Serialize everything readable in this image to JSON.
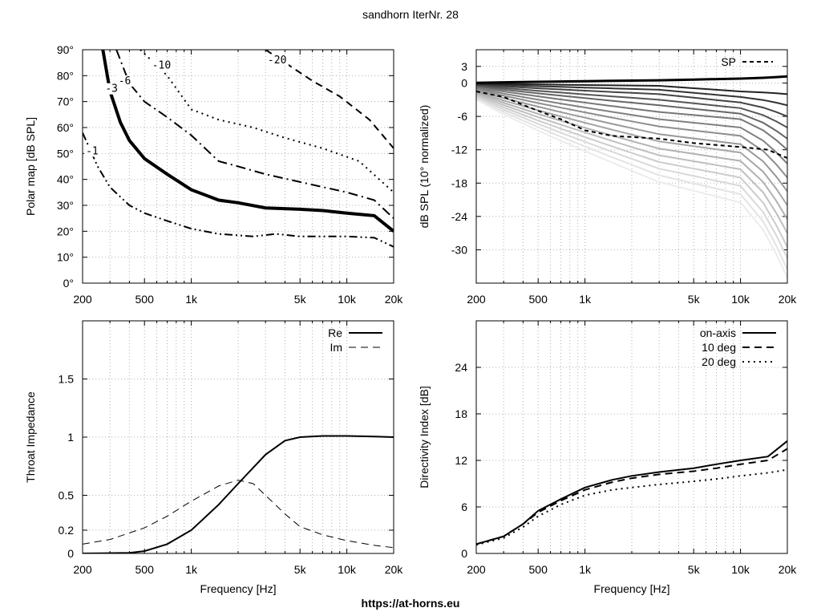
{
  "title": "sandhorn IterNr. 28",
  "footer": "https://at-horns.eu",
  "frequency_ticks": [
    "200",
    "500",
    "1k",
    "5k",
    "10k",
    "20k"
  ],
  "chart_data": [
    {
      "id": "polar",
      "type": "line",
      "ylabel": "Polar map [dB SPL]",
      "xlabel": "",
      "xscale": "log",
      "xlim": [
        200,
        20000
      ],
      "ylim": [
        0,
        90
      ],
      "yticks": [
        0,
        10,
        20,
        30,
        40,
        50,
        60,
        70,
        80,
        90
      ],
      "ytick_labels": [
        "0°",
        "10°",
        "20°",
        "30°",
        "40°",
        "50°",
        "60°",
        "70°",
        "80°",
        "90°"
      ],
      "series": [
        {
          "name": "-1",
          "style": "dash-dot-dot",
          "label_at": [
            210,
            50
          ],
          "points": [
            [
              200,
              58
            ],
            [
              250,
              45
            ],
            [
              300,
              37
            ],
            [
              400,
              30
            ],
            [
              500,
              27
            ],
            [
              700,
              24
            ],
            [
              1000,
              21
            ],
            [
              1500,
              19
            ],
            [
              2500,
              18
            ],
            [
              3500,
              19
            ],
            [
              5000,
              18
            ],
            [
              7000,
              18
            ],
            [
              10000,
              18
            ],
            [
              15000,
              17.5
            ],
            [
              20000,
              14
            ]
          ]
        },
        {
          "name": "-3",
          "style": "thick",
          "label_at": [
            280,
            74
          ],
          "points": [
            [
              270,
              90
            ],
            [
              300,
              74
            ],
            [
              350,
              62
            ],
            [
              400,
              55
            ],
            [
              500,
              48
            ],
            [
              700,
              42
            ],
            [
              1000,
              36
            ],
            [
              1500,
              32
            ],
            [
              2000,
              31
            ],
            [
              3000,
              29
            ],
            [
              5000,
              28.5
            ],
            [
              7000,
              28
            ],
            [
              10000,
              27
            ],
            [
              15000,
              26
            ],
            [
              20000,
              20
            ]
          ]
        },
        {
          "name": "-6",
          "style": "dash-dot",
          "label_at": [
            340,
            77
          ],
          "points": [
            [
              330,
              90
            ],
            [
              400,
              77
            ],
            [
              500,
              70
            ],
            [
              700,
              64
            ],
            [
              1000,
              57
            ],
            [
              1500,
              47
            ],
            [
              2000,
              45
            ],
            [
              3000,
              42
            ],
            [
              5000,
              39
            ],
            [
              10000,
              35
            ],
            [
              15000,
              32
            ],
            [
              20000,
              25
            ]
          ]
        },
        {
          "name": "-10",
          "style": "dotted",
          "label_at": [
            560,
            83
          ],
          "points": [
            [
              470,
              90
            ],
            [
              700,
              80
            ],
            [
              1000,
              67
            ],
            [
              1500,
              63
            ],
            [
              2500,
              60
            ],
            [
              4000,
              56
            ],
            [
              7000,
              52
            ],
            [
              12000,
              47
            ],
            [
              20000,
              35
            ]
          ]
        },
        {
          "name": "-20",
          "style": "dashed",
          "label_at": [
            3100,
            85
          ],
          "points": [
            [
              3000,
              90
            ],
            [
              4500,
              83
            ],
            [
              6000,
              78
            ],
            [
              9000,
              72
            ],
            [
              14000,
              63
            ],
            [
              20000,
              52
            ]
          ]
        }
      ]
    },
    {
      "id": "normalized",
      "type": "line",
      "ylabel": "dB SPL (10° normalized)",
      "xlabel": "",
      "xscale": "log",
      "xlim": [
        200,
        20000
      ],
      "ylim": [
        -36,
        6
      ],
      "yticks": [
        3,
        0,
        -6,
        -12,
        -18,
        -24,
        -30
      ],
      "legend": [
        {
          "name": "SP",
          "style": "dashed"
        }
      ],
      "legend_position": "top-right",
      "sp_curve": [
        [
          200,
          -1.5
        ],
        [
          300,
          -2.5
        ],
        [
          500,
          -5
        ],
        [
          700,
          -6.5
        ],
        [
          1000,
          -8.5
        ],
        [
          1500,
          -9.5
        ],
        [
          3000,
          -10
        ],
        [
          5000,
          -10.8
        ],
        [
          10000,
          -11.5
        ],
        [
          15000,
          -12
        ],
        [
          20000,
          -13.5
        ]
      ],
      "angle_curves": [
        {
          "d0": 0.2,
          "d3": 0.5,
          "d10": 0.8,
          "d20": 1.2,
          "gray": "#000000",
          "w": 3
        },
        {
          "d0": -0.3,
          "d3": -0.5,
          "d10": -1.5,
          "d20": -2,
          "gray": "#222222",
          "w": 2
        },
        {
          "d0": -0.6,
          "d3": -1.2,
          "d10": -2.5,
          "d20": -4,
          "gray": "#333333",
          "w": 2
        },
        {
          "d0": -1.0,
          "d3": -2.0,
          "d10": -3.5,
          "d20": -6,
          "gray": "#444444",
          "w": 2
        },
        {
          "d0": -1.4,
          "d3": -3.0,
          "d10": -4.5,
          "d20": -8,
          "gray": "#555555",
          "w": 2
        },
        {
          "d0": -1.8,
          "d3": -4.0,
          "d10": -5.5,
          "d20": -10,
          "gray": "#666666",
          "w": 2
        },
        {
          "d0": -2.3,
          "d3": -5.2,
          "d10": -6.5,
          "d20": -12,
          "gray": "#777777",
          "w": 2
        },
        {
          "d0": -2.9,
          "d3": -6.5,
          "d10": -8.0,
          "d20": -14.5,
          "gray": "#808080",
          "w": 2
        },
        {
          "d0": -3.5,
          "d3": -7.8,
          "d10": -9.5,
          "d20": -17,
          "gray": "#8d8d8d",
          "w": 2
        },
        {
          "d0": -4.2,
          "d3": -9.2,
          "d10": -11.0,
          "d20": -19.5,
          "gray": "#999999",
          "w": 2
        },
        {
          "d0": -5.0,
          "d3": -10.5,
          "d10": -12.5,
          "d20": -22,
          "gray": "#a6a6a6",
          "w": 2
        },
        {
          "d0": -5.8,
          "d3": -11.8,
          "d10": -14.0,
          "d20": -24.5,
          "gray": "#b2b2b2",
          "w": 2
        },
        {
          "d0": -6.6,
          "d3": -13.0,
          "d10": -15.5,
          "d20": -27,
          "gray": "#bfbfbf",
          "w": 2
        },
        {
          "d0": -7.4,
          "d3": -14.2,
          "d10": -17.0,
          "d20": -29.5,
          "gray": "#cccccc",
          "w": 2
        },
        {
          "d0": -8.2,
          "d3": -15.4,
          "d10": -18.5,
          "d20": -31.5,
          "gray": "#d9d9d9",
          "w": 2
        },
        {
          "d0": -9.0,
          "d3": -16.6,
          "d10": -20.0,
          "d20": -33.5,
          "gray": "#e3e3e3",
          "w": 2
        },
        {
          "d0": -9.8,
          "d3": -17.8,
          "d10": -21.5,
          "d20": -35,
          "gray": "#ececec",
          "w": 2
        }
      ]
    },
    {
      "id": "impedance",
      "type": "line",
      "ylabel": "Throat Impedance",
      "xlabel": "Frequency [Hz]",
      "xscale": "log",
      "xlim": [
        200,
        20000
      ],
      "ylim": [
        0,
        2
      ],
      "yticks": [
        0,
        0.2,
        0.5,
        1,
        1.5
      ],
      "ytick_labels": [
        "0",
        "0.2",
        "0.5",
        "1",
        "1.5"
      ],
      "legend_position": "top-right",
      "series": [
        {
          "name": "Re",
          "style": "solid",
          "points": [
            [
              200,
              0
            ],
            [
              400,
              0.005
            ],
            [
              500,
              0.02
            ],
            [
              700,
              0.08
            ],
            [
              1000,
              0.2
            ],
            [
              1500,
              0.42
            ],
            [
              2000,
              0.6
            ],
            [
              3000,
              0.85
            ],
            [
              4000,
              0.97
            ],
            [
              5000,
              1.0
            ],
            [
              7000,
              1.01
            ],
            [
              10000,
              1.01
            ],
            [
              15000,
              1.005
            ],
            [
              20000,
              1.0
            ]
          ]
        },
        {
          "name": "Im",
          "style": "dashed",
          "points": [
            [
              200,
              0.08
            ],
            [
              300,
              0.12
            ],
            [
              500,
              0.22
            ],
            [
              700,
              0.32
            ],
            [
              1000,
              0.45
            ],
            [
              1500,
              0.58
            ],
            [
              2000,
              0.63
            ],
            [
              2500,
              0.6
            ],
            [
              3000,
              0.5
            ],
            [
              4000,
              0.34
            ],
            [
              5000,
              0.23
            ],
            [
              7000,
              0.16
            ],
            [
              10000,
              0.11
            ],
            [
              15000,
              0.07
            ],
            [
              20000,
              0.05
            ]
          ]
        }
      ]
    },
    {
      "id": "directivity",
      "type": "line",
      "ylabel": "Directivity Index [dB]",
      "xlabel": "Frequency [Hz]",
      "xscale": "log",
      "xlim": [
        200,
        20000
      ],
      "ylim": [
        0,
        30
      ],
      "yticks": [
        0,
        6,
        12,
        18,
        24
      ],
      "legend_position": "top-right",
      "series": [
        {
          "name": "on-axis",
          "style": "solid",
          "points": [
            [
              200,
              1.2
            ],
            [
              300,
              2.2
            ],
            [
              400,
              3.8
            ],
            [
              500,
              5.5
            ],
            [
              700,
              7.0
            ],
            [
              1000,
              8.5
            ],
            [
              1500,
              9.5
            ],
            [
              2000,
              10
            ],
            [
              3000,
              10.5
            ],
            [
              5000,
              11
            ],
            [
              7000,
              11.5
            ],
            [
              10000,
              12
            ],
            [
              15000,
              12.5
            ],
            [
              20000,
              14.5
            ]
          ]
        },
        {
          "name": "10 deg",
          "style": "dashed",
          "points": [
            [
              200,
              1.2
            ],
            [
              300,
              2.2
            ],
            [
              400,
              3.8
            ],
            [
              500,
              5.3
            ],
            [
              700,
              6.8
            ],
            [
              1000,
              8.2
            ],
            [
              1500,
              9.2
            ],
            [
              2000,
              9.7
            ],
            [
              3000,
              10.2
            ],
            [
              5000,
              10.6
            ],
            [
              7000,
              11.0
            ],
            [
              10000,
              11.5
            ],
            [
              15000,
              12.0
            ],
            [
              20000,
              13.5
            ]
          ]
        },
        {
          "name": "20 deg",
          "style": "dotted",
          "points": [
            [
              200,
              1.1
            ],
            [
              300,
              2.0
            ],
            [
              400,
              3.4
            ],
            [
              500,
              4.8
            ],
            [
              700,
              6.3
            ],
            [
              1000,
              7.5
            ],
            [
              1500,
              8.2
            ],
            [
              2000,
              8.5
            ],
            [
              3000,
              8.9
            ],
            [
              5000,
              9.3
            ],
            [
              7000,
              9.6
            ],
            [
              10000,
              10
            ],
            [
              15000,
              10.4
            ],
            [
              20000,
              10.8
            ]
          ]
        }
      ]
    }
  ]
}
